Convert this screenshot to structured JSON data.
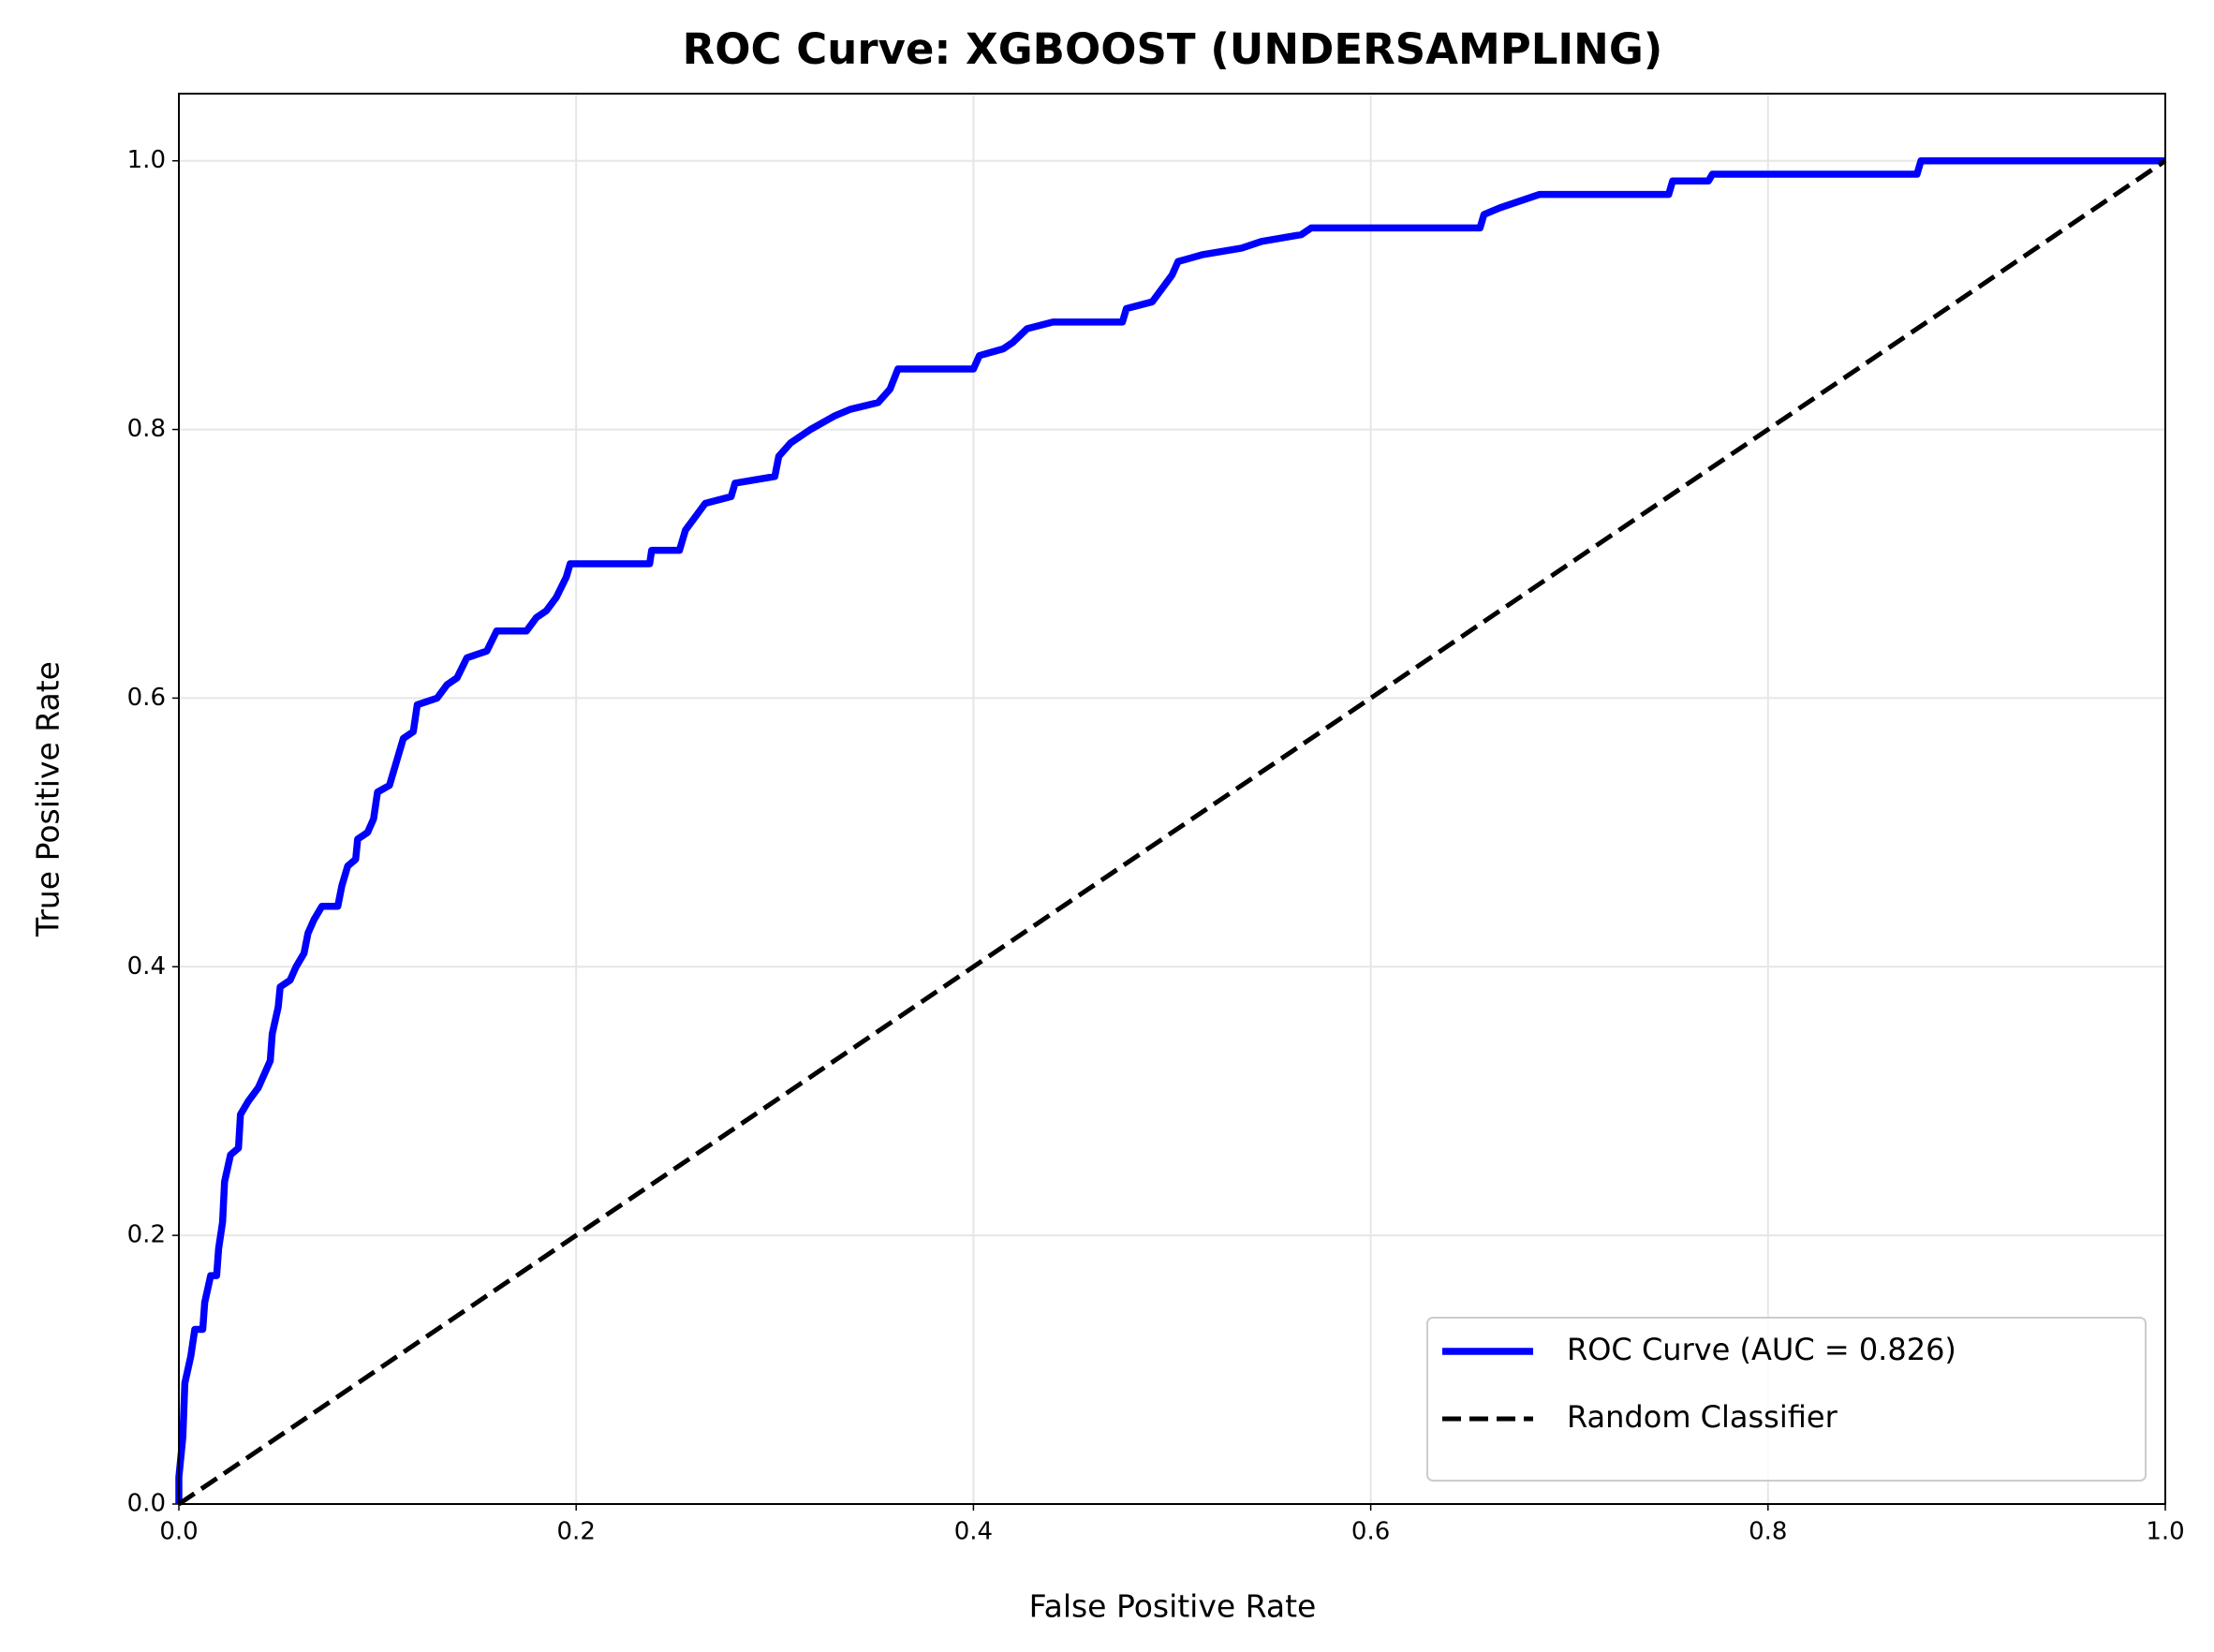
{
  "chart_data": {
    "type": "line",
    "title": "ROC Curve: XGBOOST (UNDERSAMPLING)",
    "xlabel": "False Positive Rate",
    "ylabel": "True Positive Rate",
    "xlim": [
      0,
      1
    ],
    "ylim": [
      0,
      1.05
    ],
    "xticks": [
      {
        "value": 0,
        "label": "0.0"
      },
      0.2,
      0.4,
      0.6,
      0.8,
      {
        "value": 1,
        "label": "1.0"
      }
    ],
    "yticks": [
      {
        "value": 0,
        "label": "0.0"
      },
      0.2,
      0.4,
      0.6,
      0.8,
      {
        "value": 1,
        "label": "1.0"
      }
    ],
    "grid": true,
    "legend": "lower right",
    "series": [
      {
        "name": "ROC Curve (AUC = 0.826)",
        "color": "#0000ff",
        "linestyle": "solid",
        "x": [
          0,
          0,
          0.002,
          0.003,
          0.006,
          0.008,
          0.012,
          0.013,
          0.016,
          0.019,
          0.02,
          0.022,
          0.023,
          0.026,
          0.03,
          0.031,
          0.035,
          0.04,
          0.043,
          0.046,
          0.047,
          0.05,
          0.051,
          0.056,
          0.059,
          0.063,
          0.065,
          0.068,
          0.072,
          0.08,
          0.082,
          0.085,
          0.089,
          0.09,
          0.095,
          0.098,
          0.1,
          0.106,
          0.11,
          0.113,
          0.118,
          0.12,
          0.13,
          0.135,
          0.14,
          0.145,
          0.155,
          0.16,
          0.175,
          0.18,
          0.185,
          0.19,
          0.195,
          0.197,
          0.237,
          0.238,
          0.252,
          0.255,
          0.26,
          0.265,
          0.278,
          0.28,
          0.3,
          0.302,
          0.308,
          0.318,
          0.33,
          0.338,
          0.352,
          0.358,
          0.362,
          0.4,
          0.403,
          0.415,
          0.42,
          0.427,
          0.44,
          0.475,
          0.477,
          0.49,
          0.495,
          0.5,
          0.503,
          0.515,
          0.535,
          0.545,
          0.565,
          0.57,
          0.655,
          0.657,
          0.665,
          0.685,
          0.75,
          0.752,
          0.77,
          0.772,
          0.875,
          0.877,
          1
        ],
        "values": [
          0,
          0.02,
          0.05,
          0.09,
          0.11,
          0.13,
          0.13,
          0.15,
          0.17,
          0.17,
          0.19,
          0.21,
          0.24,
          0.26,
          0.265,
          0.29,
          0.3,
          0.31,
          0.32,
          0.33,
          0.35,
          0.37,
          0.385,
          0.39,
          0.4,
          0.41,
          0.425,
          0.435,
          0.445,
          0.445,
          0.46,
          0.475,
          0.48,
          0.495,
          0.5,
          0.51,
          0.53,
          0.535,
          0.555,
          0.57,
          0.575,
          0.595,
          0.6,
          0.61,
          0.615,
          0.63,
          0.635,
          0.65,
          0.65,
          0.66,
          0.665,
          0.675,
          0.69,
          0.7,
          0.7,
          0.71,
          0.71,
          0.725,
          0.735,
          0.745,
          0.75,
          0.76,
          0.765,
          0.78,
          0.79,
          0.8,
          0.81,
          0.815,
          0.82,
          0.83,
          0.845,
          0.845,
          0.855,
          0.86,
          0.865,
          0.875,
          0.88,
          0.88,
          0.89,
          0.895,
          0.905,
          0.915,
          0.925,
          0.93,
          0.935,
          0.94,
          0.945,
          0.95,
          0.95,
          0.96,
          0.965,
          0.975,
          0.975,
          0.985,
          0.985,
          0.99,
          0.99,
          1,
          1
        ]
      },
      {
        "name": "Random Classifier",
        "color": "#000000",
        "linestyle": "dashed",
        "x": [
          0,
          1
        ],
        "values": [
          0,
          1
        ]
      }
    ]
  }
}
